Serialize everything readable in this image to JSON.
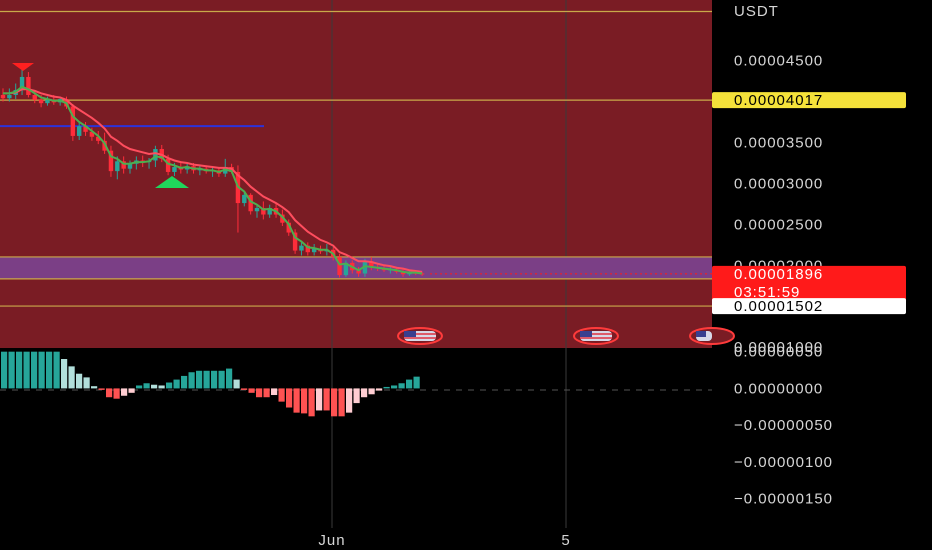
{
  "chart_data": [
    {
      "type": "candlestick",
      "currency_label": "USDT",
      "ylim": [
        9.9e-06,
        5.24e-05
      ],
      "y_ticks": [
        "0.00004500",
        "0.00003500",
        "0.00003000",
        "0.00002500",
        "0.00002000",
        "0.00001000"
      ],
      "x_ticks": [
        "Jun",
        "5"
      ],
      "candles": [
        {
          "o": 4.08,
          "h": 4.16,
          "l": 4.0,
          "c": 4.04
        },
        {
          "o": 4.04,
          "h": 4.16,
          "l": 4.0,
          "c": 4.08
        },
        {
          "o": 4.08,
          "h": 4.22,
          "l": 4.03,
          "c": 4.14
        },
        {
          "o": 4.14,
          "h": 4.4,
          "l": 4.08,
          "c": 4.3
        },
        {
          "o": 4.3,
          "h": 4.36,
          "l": 4.05,
          "c": 4.08
        },
        {
          "o": 4.08,
          "h": 4.12,
          "l": 3.98,
          "c": 4.02
        },
        {
          "o": 4.02,
          "h": 4.08,
          "l": 3.93,
          "c": 3.98
        },
        {
          "o": 3.98,
          "h": 4.06,
          "l": 3.95,
          "c": 4.02
        },
        {
          "o": 4.02,
          "h": 4.08,
          "l": 3.96,
          "c": 3.99
        },
        {
          "o": 3.99,
          "h": 4.06,
          "l": 3.95,
          "c": 4.03
        },
        {
          "o": 4.03,
          "h": 4.06,
          "l": 3.91,
          "c": 3.94
        },
        {
          "o": 3.94,
          "h": 3.97,
          "l": 3.52,
          "c": 3.58
        },
        {
          "o": 3.58,
          "h": 3.76,
          "l": 3.53,
          "c": 3.7
        },
        {
          "o": 3.7,
          "h": 3.75,
          "l": 3.58,
          "c": 3.63
        },
        {
          "o": 3.63,
          "h": 3.68,
          "l": 3.52,
          "c": 3.57
        },
        {
          "o": 3.57,
          "h": 3.64,
          "l": 3.48,
          "c": 3.52
        },
        {
          "o": 3.52,
          "h": 3.62,
          "l": 3.36,
          "c": 3.4
        },
        {
          "o": 3.4,
          "h": 3.46,
          "l": 3.08,
          "c": 3.15
        },
        {
          "o": 3.15,
          "h": 3.33,
          "l": 3.05,
          "c": 3.27
        },
        {
          "o": 3.27,
          "h": 3.33,
          "l": 3.12,
          "c": 3.18
        },
        {
          "o": 3.18,
          "h": 3.28,
          "l": 3.12,
          "c": 3.24
        },
        {
          "o": 3.24,
          "h": 3.33,
          "l": 3.17,
          "c": 3.28
        },
        {
          "o": 3.28,
          "h": 3.34,
          "l": 3.2,
          "c": 3.26
        },
        {
          "o": 3.26,
          "h": 3.31,
          "l": 3.18,
          "c": 3.28
        },
        {
          "o": 3.28,
          "h": 3.46,
          "l": 3.2,
          "c": 3.42
        },
        {
          "o": 3.42,
          "h": 3.47,
          "l": 3.26,
          "c": 3.3
        },
        {
          "o": 3.3,
          "h": 3.35,
          "l": 3.1,
          "c": 3.14
        },
        {
          "o": 3.14,
          "h": 3.25,
          "l": 3.09,
          "c": 3.2
        },
        {
          "o": 3.2,
          "h": 3.27,
          "l": 3.12,
          "c": 3.17
        },
        {
          "o": 3.17,
          "h": 3.24,
          "l": 3.12,
          "c": 3.21
        },
        {
          "o": 3.21,
          "h": 3.25,
          "l": 3.12,
          "c": 3.16
        },
        {
          "o": 3.16,
          "h": 3.22,
          "l": 3.1,
          "c": 3.18
        },
        {
          "o": 3.18,
          "h": 3.22,
          "l": 3.12,
          "c": 3.15
        },
        {
          "o": 3.15,
          "h": 3.19,
          "l": 3.08,
          "c": 3.16
        },
        {
          "o": 3.16,
          "h": 3.2,
          "l": 3.08,
          "c": 3.12
        },
        {
          "o": 3.12,
          "h": 3.3,
          "l": 3.08,
          "c": 3.2
        },
        {
          "o": 3.2,
          "h": 3.24,
          "l": 3.12,
          "c": 3.14
        },
        {
          "o": 3.14,
          "h": 3.22,
          "l": 2.4,
          "c": 2.76
        },
        {
          "o": 2.76,
          "h": 2.9,
          "l": 2.72,
          "c": 2.86
        },
        {
          "o": 2.86,
          "h": 2.88,
          "l": 2.62,
          "c": 2.66
        },
        {
          "o": 2.66,
          "h": 2.74,
          "l": 2.58,
          "c": 2.7
        },
        {
          "o": 2.7,
          "h": 2.78,
          "l": 2.56,
          "c": 2.62
        },
        {
          "o": 2.62,
          "h": 2.74,
          "l": 2.58,
          "c": 2.7
        },
        {
          "o": 2.7,
          "h": 2.76,
          "l": 2.58,
          "c": 2.62
        },
        {
          "o": 2.62,
          "h": 2.68,
          "l": 2.48,
          "c": 2.52
        },
        {
          "o": 2.52,
          "h": 2.56,
          "l": 2.36,
          "c": 2.4
        },
        {
          "o": 2.4,
          "h": 2.44,
          "l": 2.14,
          "c": 2.18
        },
        {
          "o": 2.18,
          "h": 2.3,
          "l": 2.12,
          "c": 2.24
        },
        {
          "o": 2.24,
          "h": 2.28,
          "l": 2.12,
          "c": 2.16
        },
        {
          "o": 2.16,
          "h": 2.26,
          "l": 2.12,
          "c": 2.2
        },
        {
          "o": 2.2,
          "h": 2.24,
          "l": 2.14,
          "c": 2.17
        },
        {
          "o": 2.17,
          "h": 2.26,
          "l": 2.12,
          "c": 2.19
        },
        {
          "o": 2.19,
          "h": 2.22,
          "l": 2.06,
          "c": 2.1
        },
        {
          "o": 2.1,
          "h": 2.14,
          "l": 1.85,
          "c": 1.88
        },
        {
          "o": 1.88,
          "h": 2.06,
          "l": 1.86,
          "c": 2.03
        },
        {
          "o": 2.03,
          "h": 2.06,
          "l": 1.9,
          "c": 1.94
        },
        {
          "o": 1.94,
          "h": 1.98,
          "l": 1.86,
          "c": 1.9
        },
        {
          "o": 1.9,
          "h": 2.08,
          "l": 1.86,
          "c": 2.05
        },
        {
          "o": 2.05,
          "h": 2.1,
          "l": 1.94,
          "c": 1.98
        },
        {
          "o": 1.98,
          "h": 2.02,
          "l": 1.93,
          "c": 1.96
        },
        {
          "o": 1.96,
          "h": 2.0,
          "l": 1.92,
          "c": 1.94
        },
        {
          "o": 1.94,
          "h": 1.98,
          "l": 1.9,
          "c": 1.95
        },
        {
          "o": 1.95,
          "h": 1.97,
          "l": 1.9,
          "c": 1.92
        },
        {
          "o": 1.92,
          "h": 1.95,
          "l": 1.86,
          "c": 1.89
        },
        {
          "o": 1.89,
          "h": 1.93,
          "l": 1.87,
          "c": 1.91
        },
        {
          "o": 1.91,
          "h": 1.94,
          "l": 1.88,
          "c": 1.9
        },
        {
          "o": 1.9,
          "h": 1.92,
          "l": 1.87,
          "c": 1.89
        }
      ],
      "ma_fast": [
        4.1,
        4.1,
        4.12,
        4.18,
        4.15,
        4.1,
        4.05,
        4.03,
        4.01,
        4.01,
        3.98,
        3.82,
        3.75,
        3.7,
        3.64,
        3.58,
        3.49,
        3.33,
        3.3,
        3.24,
        3.24,
        3.26,
        3.26,
        3.27,
        3.33,
        3.32,
        3.24,
        3.22,
        3.19,
        3.2,
        3.18,
        3.18,
        3.16,
        3.16,
        3.14,
        3.17,
        3.15,
        2.96,
        2.9,
        2.78,
        2.74,
        2.68,
        2.69,
        2.66,
        2.59,
        2.5,
        2.34,
        2.29,
        2.22,
        2.21,
        2.19,
        2.19,
        2.14,
        2.01,
        2.02,
        1.98,
        1.94,
        1.99,
        1.98,
        1.97,
        1.96,
        1.95,
        1.94,
        1.92,
        1.91,
        1.91,
        1.9
      ],
      "ma_slow": [
        4.1,
        4.1,
        4.11,
        4.15,
        4.15,
        4.13,
        4.1,
        4.08,
        4.06,
        4.05,
        4.02,
        3.95,
        3.9,
        3.85,
        3.8,
        3.74,
        3.67,
        3.57,
        3.52,
        3.46,
        3.42,
        3.4,
        3.38,
        3.36,
        3.37,
        3.35,
        3.31,
        3.28,
        3.26,
        3.25,
        3.23,
        3.22,
        3.21,
        3.2,
        3.19,
        3.19,
        3.18,
        3.1,
        3.04,
        2.96,
        2.9,
        2.84,
        2.8,
        2.76,
        2.71,
        2.65,
        2.55,
        2.48,
        2.41,
        2.36,
        2.31,
        2.28,
        2.24,
        2.16,
        2.13,
        2.09,
        2.05,
        2.05,
        2.04,
        2.02,
        2.0,
        1.99,
        1.97,
        1.96,
        1.94,
        1.93,
        1.92
      ],
      "levels": [
        {
          "value": 4.017e-05,
          "label": "0.00004017",
          "color": "#b8a23a",
          "tag_bg": "#f5e23a",
          "tag_fg": "#000000"
        },
        {
          "value": 1.896e-05,
          "label": "0.00001896",
          "timer": "03:51:59",
          "color": "#ff1a1a",
          "tag_bg": "#ff1a1a",
          "tag_fg": "#ffffff"
        },
        {
          "value": 1.502e-05,
          "label": "0.00001502",
          "color": "#c9b16a",
          "tag_bg": "#ffffff",
          "tag_fg": "#000000"
        }
      ],
      "level_lines": [
        5.1e-05,
        4.017e-05,
        2.102e-05,
        1.834e-05,
        1.502e-05
      ],
      "blue_line": 3.7e-05,
      "zone": {
        "from": 1.834e-05,
        "to": 2.102e-05
      },
      "colors": {
        "background": "#7a1c24",
        "zone": "#7b3f86",
        "up": "#26a69a",
        "down": "#ff2d3a",
        "ma_fast": "#4caf50",
        "ma_slow": "#ff4d5e",
        "blue": "#2d32d8",
        "signal_up": "#1fd65b",
        "signal_down": "#ff2020"
      }
    },
    {
      "type": "histogram",
      "ylim": [
        -1.9e-06,
        5.5e-07
      ],
      "y_ticks": [
        "0.00000050",
        "0.00000000",
        "−0.00000050",
        "−0.00000100",
        "−0.00000150"
      ],
      "values": [
        50,
        50,
        50,
        50,
        50,
        50,
        50,
        50,
        40,
        30,
        20,
        15,
        3,
        -2,
        -12,
        -14,
        -10,
        -6,
        4,
        7,
        5,
        4,
        8,
        12,
        17,
        22,
        24,
        24,
        24,
        24,
        27,
        12,
        -2,
        -6,
        -12,
        -12,
        -9,
        -18,
        -26,
        -33,
        -34,
        -38,
        -30,
        -30,
        -38,
        -38,
        -33,
        -20,
        -12,
        -8,
        -3,
        2,
        4,
        7,
        12,
        16
      ],
      "colors": {
        "pos_strong": "#26a69a",
        "pos_weak": "#b2dfdb",
        "neg_strong": "#ff5252",
        "neg_weak": "#ffcdd2"
      }
    }
  ]
}
